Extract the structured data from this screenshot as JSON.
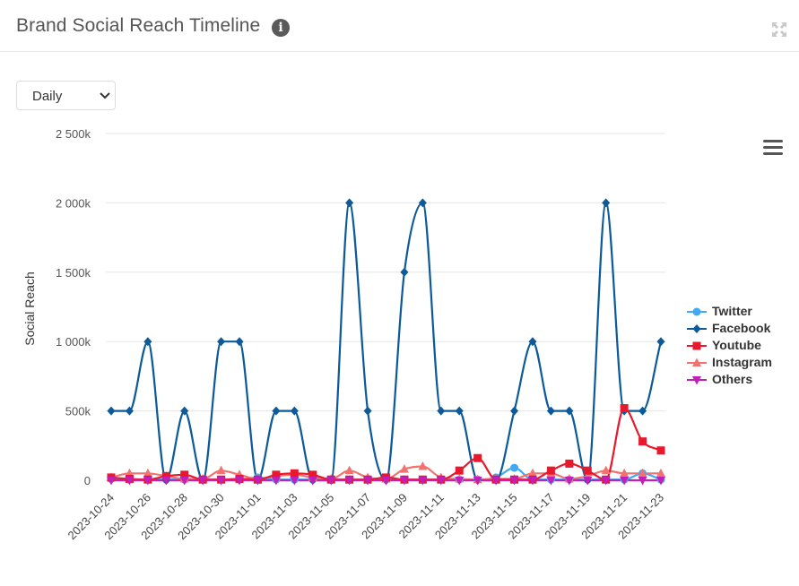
{
  "header": {
    "title": "Brand Social Reach Timeline",
    "info_icon": "info-circle-icon",
    "expand_icon": "expand-arrows-icon"
  },
  "controls": {
    "granularity_selected": "Daily"
  },
  "menu_icon": "hamburger-menu-icon",
  "chart_data": {
    "type": "line",
    "ylabel": "Social Reach",
    "xlabel": "",
    "ylim": [
      0,
      2500000
    ],
    "yticks": [
      0,
      500000,
      1000000,
      1500000,
      2000000,
      2500000
    ],
    "ytick_labels": [
      "0",
      "500k",
      "1 000k",
      "1 500k",
      "2 000k",
      "2 500k"
    ],
    "x": [
      "2023-10-24",
      "2023-10-25",
      "2023-10-26",
      "2023-10-27",
      "2023-10-28",
      "2023-10-29",
      "2023-10-30",
      "2023-10-31",
      "2023-11-01",
      "2023-11-02",
      "2023-11-03",
      "2023-11-04",
      "2023-11-05",
      "2023-11-06",
      "2023-11-07",
      "2023-11-08",
      "2023-11-09",
      "2023-11-10",
      "2023-11-11",
      "2023-11-12",
      "2023-11-13",
      "2023-11-14",
      "2023-11-15",
      "2023-11-16",
      "2023-11-17",
      "2023-11-18",
      "2023-11-19",
      "2023-11-20",
      "2023-11-21",
      "2023-11-22",
      "2023-11-23"
    ],
    "xtick_labels": [
      "2023-10-24",
      "2023-10-26",
      "2023-10-28",
      "2023-10-30",
      "2023-11-01",
      "2023-11-03",
      "2023-11-05",
      "2023-11-07",
      "2023-11-09",
      "2023-11-11",
      "2023-11-13",
      "2023-11-15",
      "2023-11-17",
      "2023-11-19",
      "2023-11-21",
      "2023-11-23"
    ],
    "grid": true,
    "legend_position": "right",
    "series": [
      {
        "name": "Twitter",
        "color": "#3fa9f5",
        "marker": "circle",
        "values": [
          10000,
          5000,
          5000,
          5000,
          5000,
          5000,
          5000,
          5000,
          20000,
          5000,
          5000,
          5000,
          5000,
          5000,
          5000,
          5000,
          5000,
          5000,
          5000,
          5000,
          5000,
          20000,
          90000,
          5000,
          5000,
          5000,
          5000,
          5000,
          5000,
          50000,
          5000
        ]
      },
      {
        "name": "Facebook",
        "color": "#0d5a9a",
        "marker": "diamond",
        "values": [
          500000,
          500000,
          1000000,
          0,
          500000,
          0,
          1000000,
          1000000,
          0,
          500000,
          500000,
          0,
          0,
          2000000,
          500000,
          0,
          1500000,
          2000000,
          500000,
          500000,
          0,
          0,
          500000,
          1000000,
          500000,
          500000,
          0,
          2000000,
          500000,
          500000,
          1000000
        ]
      },
      {
        "name": "Youtube",
        "color": "#e8192c",
        "marker": "square",
        "values": [
          20000,
          10000,
          5000,
          30000,
          40000,
          5000,
          5000,
          10000,
          5000,
          40000,
          50000,
          40000,
          5000,
          5000,
          5000,
          20000,
          5000,
          5000,
          5000,
          70000,
          160000,
          5000,
          5000,
          5000,
          70000,
          120000,
          70000,
          5000,
          520000,
          280000,
          215000
        ]
      },
      {
        "name": "Instagram",
        "color": "#f2726f",
        "marker": "triangle",
        "values": [
          20000,
          50000,
          50000,
          30000,
          10000,
          10000,
          70000,
          40000,
          10000,
          30000,
          40000,
          20000,
          10000,
          70000,
          20000,
          10000,
          80000,
          100000,
          20000,
          10000,
          5000,
          10000,
          10000,
          50000,
          50000,
          10000,
          30000,
          70000,
          50000,
          50000,
          50000
        ]
      },
      {
        "name": "Others",
        "color": "#c21fb8",
        "marker": "triangle-down",
        "values": [
          0,
          0,
          0,
          0,
          0,
          0,
          0,
          0,
          0,
          0,
          0,
          0,
          0,
          0,
          0,
          0,
          0,
          0,
          0,
          0,
          0,
          0,
          0,
          0,
          0,
          0,
          0,
          0,
          0,
          0,
          0
        ]
      }
    ]
  }
}
